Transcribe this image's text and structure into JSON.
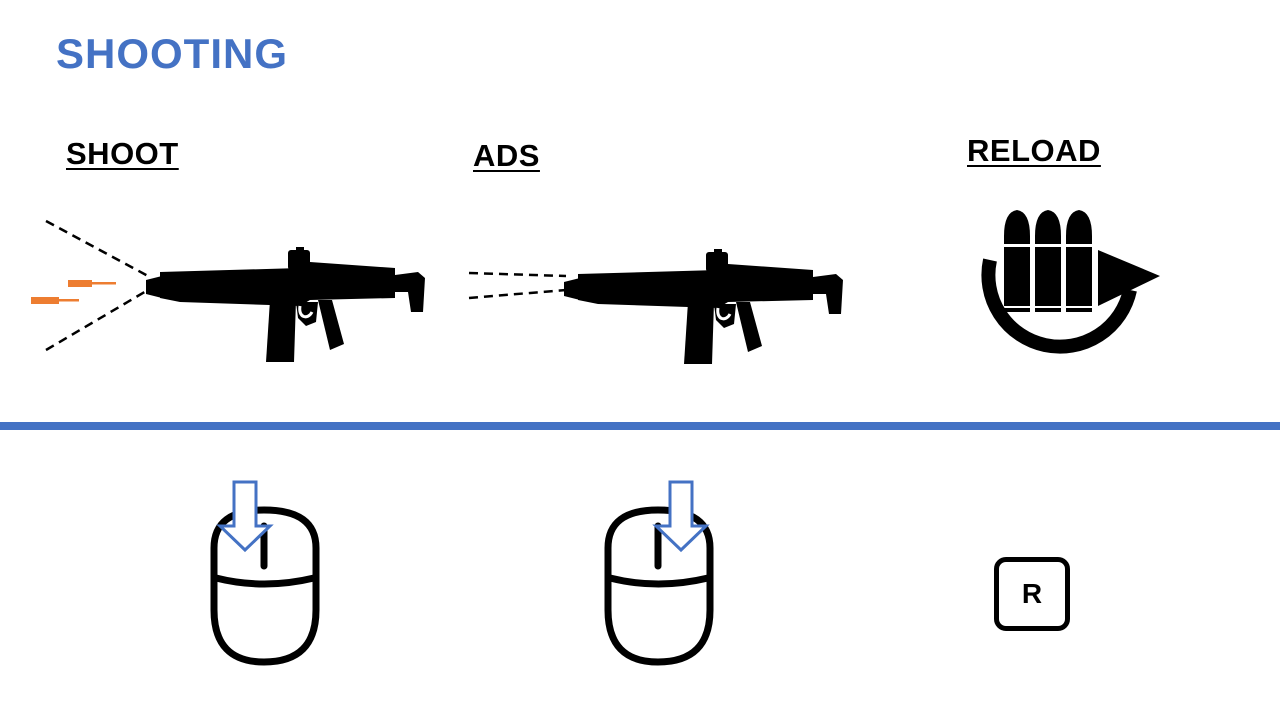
{
  "title": "SHOOTING",
  "actions": [
    {
      "label": "SHOOT",
      "input": "mouse-left-button"
    },
    {
      "label": "ADS",
      "input": "mouse-right-button"
    },
    {
      "label": "RELOAD",
      "key": "R"
    }
  ],
  "colors": {
    "accent": "#4472c4",
    "arrow": "#4472c4",
    "muzzle_flash": "#ed7d31",
    "ink": "#000000"
  },
  "icons": [
    "rifle-icon",
    "bullets-reload-icon",
    "mouse-icon",
    "down-arrow-icon",
    "keyboard-key-icon"
  ]
}
